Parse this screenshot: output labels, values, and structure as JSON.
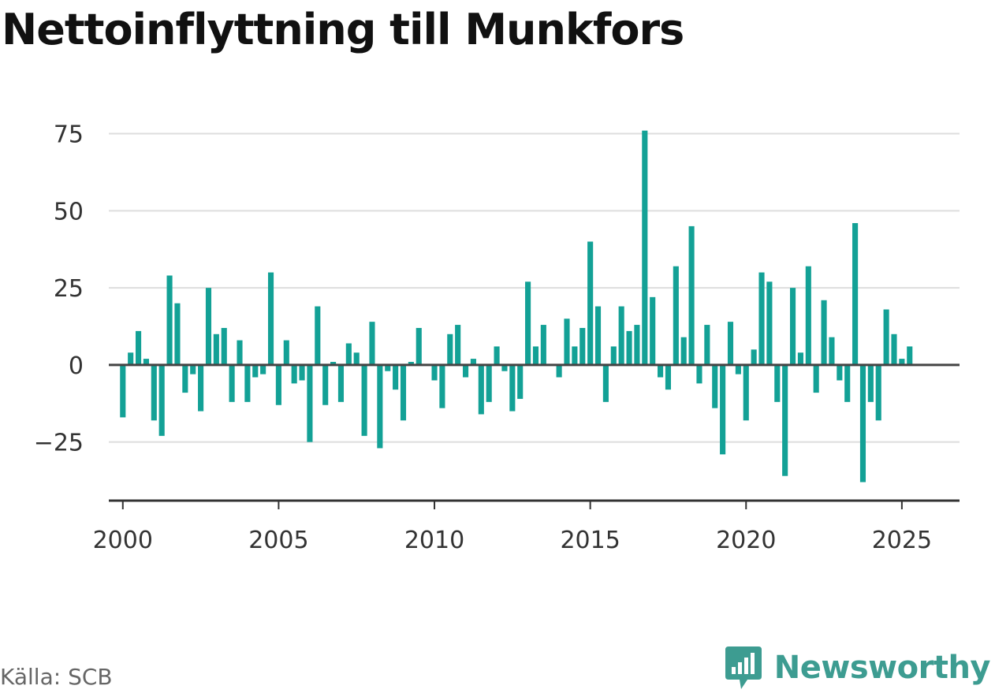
{
  "title": "Nettoinflyttning till Munkfors",
  "source": "Källa: SCB",
  "brand": {
    "name": "Newsworthy",
    "icon": "newsworthy-logo-icon"
  },
  "colors": {
    "bar": "#13a196",
    "grid": "#dddddd",
    "axis": "#333333",
    "zero_line": "#444444",
    "tick_text": "#333333",
    "brand": "#3d9c91"
  },
  "chart_data": {
    "type": "bar",
    "title": "Nettoinflyttning till Munkfors",
    "xlabel": "",
    "ylabel": "",
    "x_is_time": true,
    "x_start": 2000,
    "x_step": 0.25,
    "xlim": [
      1999.55,
      2026.85
    ],
    "ylim": [
      -44,
      80
    ],
    "x_ticks": [
      2000,
      2005,
      2010,
      2015,
      2020,
      2025
    ],
    "x_tick_labels": [
      "2000",
      "2005",
      "2010",
      "2015",
      "2020",
      "2025"
    ],
    "y_ticks": [
      75,
      50,
      25,
      0,
      -25
    ],
    "y_tick_labels": [
      "75",
      "50",
      "25",
      "0",
      "−25"
    ],
    "grid": true,
    "legend": false,
    "values": [
      -17,
      4,
      11,
      2,
      -18,
      -23,
      29,
      20,
      -9,
      -3,
      -15,
      25,
      10,
      12,
      -12,
      8,
      -12,
      -4,
      -3,
      30,
      -13,
      8,
      -6,
      -5,
      -25,
      19,
      -13,
      1,
      -12,
      7,
      4,
      -23,
      14,
      -27,
      -2,
      -8,
      -18,
      1,
      12,
      0,
      -5,
      -14,
      10,
      13,
      -4,
      2,
      -16,
      -12,
      6,
      -2,
      -15,
      -11,
      27,
      6,
      13,
      0,
      -4,
      15,
      6,
      12,
      40,
      19,
      -12,
      6,
      19,
      11,
      13,
      76,
      22,
      -4,
      -8,
      32,
      9,
      45,
      -6,
      13,
      -14,
      -29,
      14,
      -3,
      -18,
      5,
      30,
      27,
      -12,
      -36,
      25,
      4,
      32,
      -9,
      21,
      9,
      -5,
      -12,
      46,
      -38,
      -12,
      -18,
      18,
      10,
      2,
      6
    ]
  }
}
